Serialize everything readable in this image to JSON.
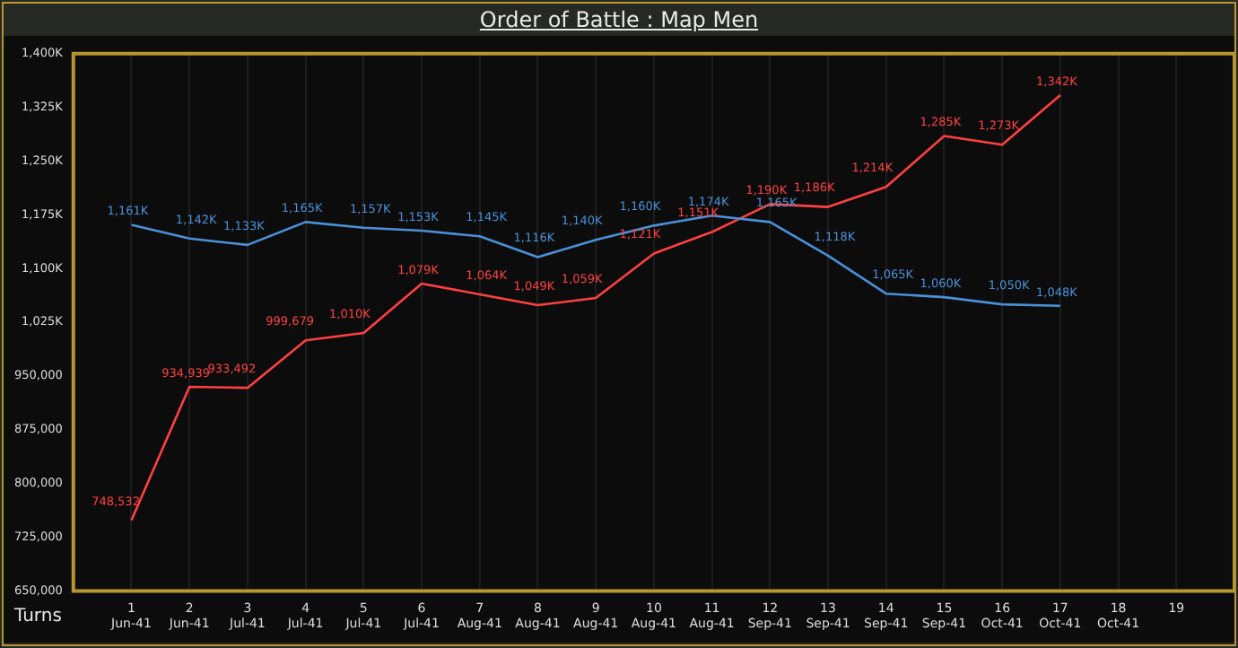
{
  "chart_data": {
    "type": "line",
    "title": "Order of Battle : Map Men",
    "xlabel": "Turns",
    "categories": [
      "1 Jun-41",
      "2 Jun-41",
      "3 Jul-41",
      "4 Jul-41",
      "5 Jul-41",
      "6 Jul-41",
      "7 Aug-41",
      "8 Aug-41",
      "9 Aug-41",
      "10 Aug-41",
      "11 Aug-41",
      "12 Sep-41",
      "13 Sep-41",
      "14 Sep-41",
      "15 Sep-41",
      "16 Oct-41",
      "17 Oct-41",
      "18 Oct-41",
      "19"
    ],
    "series": [
      {
        "color": "#4a90d9",
        "values": [
          1161000,
          1142000,
          1133000,
          1165000,
          1157000,
          1153000,
          1145000,
          1116000,
          1140000,
          1160000,
          1174000,
          1165000,
          1118000,
          1065000,
          1060000,
          1050000,
          1048000,
          null,
          null
        ],
        "value_labels": [
          "1,161K",
          "1,142K",
          "1,133K",
          "1,165K",
          "1,157K",
          "1,153K",
          "1,145K",
          "1,116K",
          "1,140K",
          "1,160K",
          "1,174K",
          "1,165K",
          "1,118K",
          "1,065K",
          "1,060K",
          "1,050K",
          "1,048K",
          null,
          null
        ]
      },
      {
        "color": "#ff4040",
        "values": [
          748532,
          934939,
          933492,
          999679,
          1010000,
          1079000,
          1064000,
          1049000,
          1059000,
          1121000,
          1151000,
          1190000,
          1186000,
          1214000,
          1285000,
          1273000,
          1342000,
          null,
          null
        ],
        "value_labels": [
          "748,532",
          "934,939",
          "933,492",
          "999,679",
          "1,010K",
          "1,079K",
          "1,064K",
          "1,049K",
          "1,059K",
          "1,121K",
          "1,151K",
          "1,190K",
          "1,186K",
          "1,214K",
          "1,285K",
          "1,273K",
          "1,342K",
          null,
          null
        ]
      }
    ],
    "ylim": [
      650000,
      1400000
    ],
    "yticks": [
      {
        "value": 650000,
        "label": "650,000"
      },
      {
        "value": 725000,
        "label": "725,000"
      },
      {
        "value": 800000,
        "label": "800,000"
      },
      {
        "value": 875000,
        "label": "875,000"
      },
      {
        "value": 950000,
        "label": "950,000"
      },
      {
        "value": 1025000,
        "label": "1,025K"
      },
      {
        "value": 1100000,
        "label": "1,100K"
      },
      {
        "value": 1175000,
        "label": "1,175K"
      },
      {
        "value": 1250000,
        "label": "1,250K"
      },
      {
        "value": 1325000,
        "label": "1,325K"
      },
      {
        "value": 1400000,
        "label": "1,400K"
      }
    ],
    "grid": "x",
    "legend": false,
    "marker": "none",
    "line_style": "solid"
  }
}
